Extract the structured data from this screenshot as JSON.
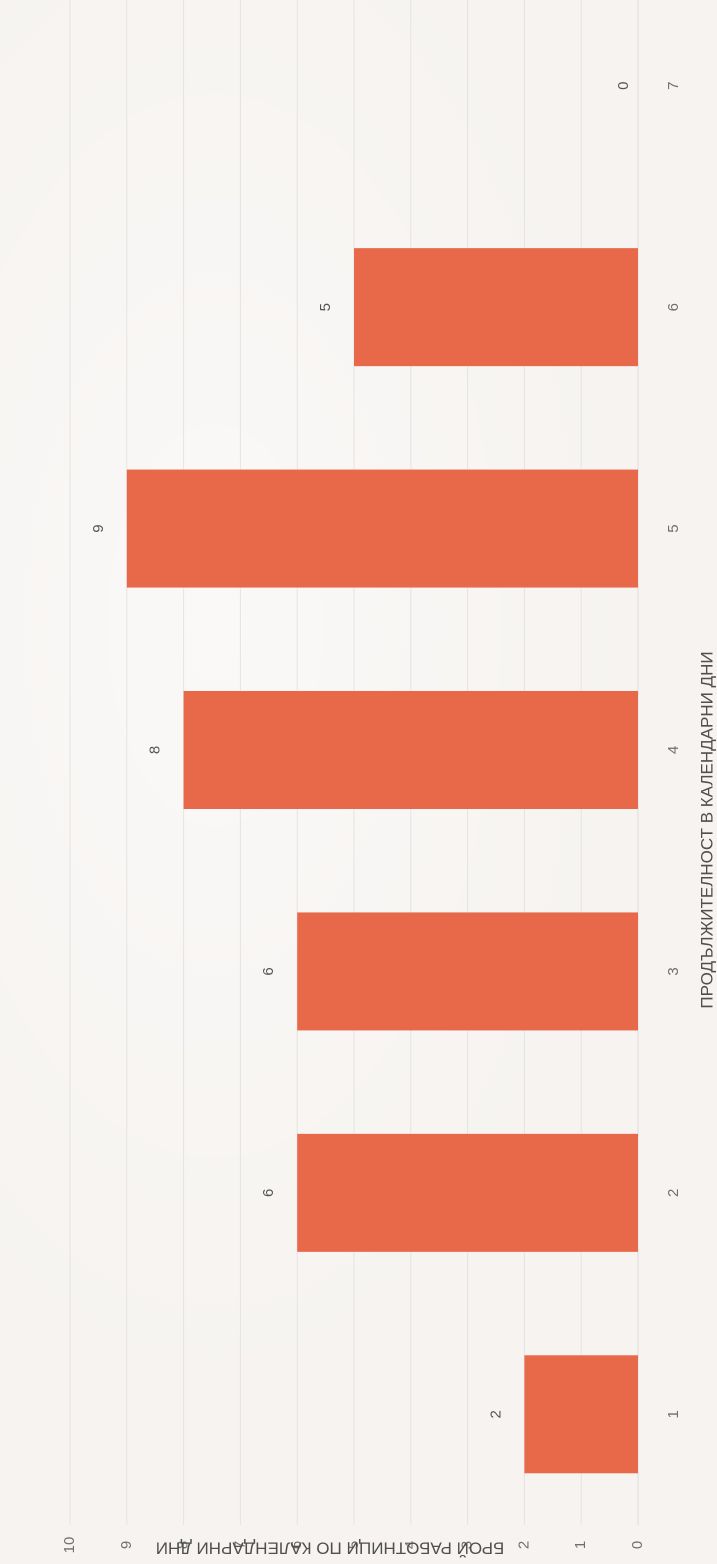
{
  "chart_data": {
    "type": "bar",
    "orientation": "vertical-in-rotated-scan",
    "xlabel": "ПРОДЪЛЖИТЕЛНОСТ В КАЛЕНДАРНИ ДНИ",
    "ylabel": "БРОЙ РАБОТНИЦИ ПО КАЛЕНДАРНИ ДНИ",
    "categories": [
      "1",
      "2",
      "3",
      "4",
      "5",
      "6",
      "7"
    ],
    "values": [
      2,
      6,
      6,
      8,
      9,
      5,
      0
    ],
    "data_labels": [
      "2",
      "6",
      "6",
      "8",
      "9",
      "5",
      "0"
    ],
    "ylim": [
      0,
      10
    ],
    "yticks": [
      "0",
      "1",
      "2",
      "3",
      "4",
      "5",
      "6",
      "7",
      "8",
      "9",
      "10"
    ],
    "grid": true,
    "legend": "none",
    "colors": {
      "bar": "#e8694a",
      "grid": "#e6e3e0",
      "text": "#6f6f6f"
    }
  }
}
